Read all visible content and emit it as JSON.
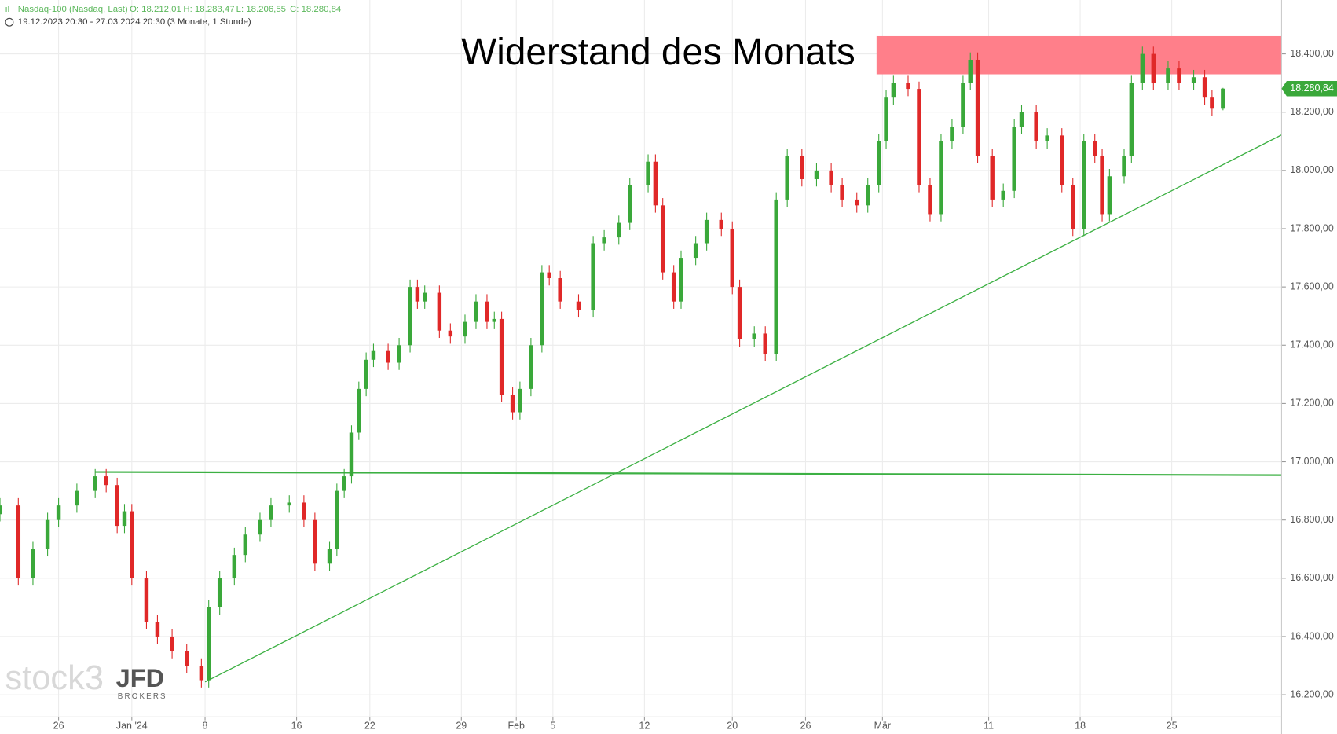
{
  "chart_data": {
    "type": "candlestick",
    "header": {
      "instrument": "Nasdaq-100 (Nasdaq, Last)",
      "open": "O: 18.212,01",
      "high": "H: 18.283,47",
      "low": "L: 18.206,55",
      "close": "C: 18.280,84",
      "range": "19.12.2023 20:30 - 27.03.2024 20:30",
      "period": "(3 Monate, 1 Stunde)"
    },
    "annotation": "Widerstand des Monats",
    "resistance_zone": [
      18330,
      18461
    ],
    "resistance_color": "#ff7f8a",
    "horizontal_line": {
      "x": [
        26,
        350
      ],
      "y": [
        16965,
        16954
      ]
    },
    "trend_line": {
      "x": [
        56,
        350
      ],
      "y": [
        16244,
        18122
      ]
    },
    "line_color": "#3cb043",
    "last_price_label": "18.280,84",
    "watermark": "stock3",
    "broker": "JFD",
    "broker_sub": "BROKERS",
    "up_color": "#3aa83a",
    "down_color": "#e02828",
    "x": [
      0,
      5,
      9,
      13,
      16,
      21,
      26,
      29,
      32,
      34,
      36,
      40,
      43,
      47,
      51,
      55,
      57,
      60,
      64,
      67,
      71,
      74,
      79,
      83,
      86,
      90,
      92,
      94,
      96,
      98,
      100,
      102,
      106,
      109,
      112,
      114,
      116,
      120,
      123,
      127,
      130,
      133,
      135,
      137,
      140,
      142,
      145,
      148,
      150,
      153,
      158,
      162,
      165,
      169,
      172,
      177,
      179,
      181,
      184,
      186,
      190,
      193,
      197,
      200,
      202,
      206,
      209,
      212,
      215,
      219,
      223,
      227,
      230,
      234,
      237,
      240,
      242,
      244,
      248,
      251,
      254,
      257,
      260,
      263,
      265,
      267,
      271,
      274,
      277,
      279,
      283,
      286,
      290,
      293,
      296,
      299,
      301,
      303,
      307,
      309,
      312,
      315,
      319,
      322,
      326,
      329,
      331,
      334
    ],
    "open": [
      16820,
      16850,
      16600,
      16700,
      16800,
      16850,
      16900,
      16950,
      16920,
      16780,
      16830,
      16600,
      16450,
      16400,
      16350,
      16300,
      16250,
      16500,
      16600,
      16680,
      16750,
      16800,
      16850,
      16860,
      16800,
      16650,
      16700,
      16900,
      16950,
      17100,
      17250,
      17350,
      17380,
      17340,
      17400,
      17600,
      17550,
      17580,
      17450,
      17430,
      17480,
      17550,
      17480,
      17490,
      17230,
      17170,
      17250,
      17400,
      17650,
      17630,
      17550,
      17520,
      17750,
      17770,
      17820,
      17950,
      18030,
      17880,
      17650,
      17550,
      17700,
      17750,
      17830,
      17800,
      17600,
      17420,
      17440,
      17370,
      17900,
      18050,
      17970,
      18000,
      17950,
      17900,
      17880,
      17950,
      18100,
      18250,
      18300,
      18280,
      17950,
      17850,
      18100,
      18150,
      18300,
      18380,
      18050,
      17900,
      17930,
      18150,
      18200,
      18100,
      18120,
      17950,
      17800,
      18100,
      18050,
      17850,
      17980,
      18050,
      18300,
      18400,
      18300,
      18350,
      18300,
      18320,
      18250,
      18212.01
    ],
    "high": [
      16875,
      16875,
      16725,
      16825,
      16875,
      16925,
      16975,
      16975,
      16945,
      16855,
      16855,
      16625,
      16475,
      16425,
      16375,
      16325,
      16525,
      16625,
      16705,
      16775,
      16825,
      16875,
      16885,
      16885,
      16825,
      16725,
      16925,
      16975,
      17125,
      17275,
      17375,
      17405,
      17405,
      17425,
      17625,
      17625,
      17605,
      17605,
      17475,
      17505,
      17575,
      17575,
      17515,
      17515,
      17255,
      17275,
      17425,
      17675,
      17675,
      17655,
      17575,
      17775,
      17795,
      17845,
      17975,
      18055,
      18055,
      17905,
      17675,
      17725,
      17775,
      17855,
      17855,
      17825,
      17625,
      17465,
      17465,
      17925,
      18075,
      18075,
      18025,
      18025,
      17975,
      17925,
      17975,
      18125,
      18275,
      18325,
      18325,
      18305,
      17975,
      18125,
      18175,
      18325,
      18405,
      18405,
      18075,
      17955,
      18175,
      18225,
      18225,
      18145,
      18145,
      17975,
      18125,
      18125,
      18075,
      18005,
      18075,
      18325,
      18425,
      18425,
      18375,
      18375,
      18345,
      18345,
      18275,
      18283.47
    ],
    "low": [
      16795,
      16575,
      16575,
      16675,
      16775,
      16825,
      16875,
      16895,
      16755,
      16755,
      16575,
      16425,
      16375,
      16325,
      16275,
      16225,
      16225,
      16475,
      16575,
      16655,
      16725,
      16775,
      16825,
      16775,
      16625,
      16625,
      16675,
      16875,
      16925,
      17075,
      17225,
      17325,
      17315,
      17315,
      17375,
      17525,
      17525,
      17425,
      17405,
      17405,
      17455,
      17455,
      17455,
      17205,
      17145,
      17145,
      17225,
      17375,
      17605,
      17525,
      17495,
      17495,
      17725,
      17745,
      17795,
      17925,
      17855,
      17625,
      17525,
      17525,
      17675,
      17725,
      17775,
      17575,
      17395,
      17395,
      17345,
      17345,
      17875,
      17945,
      17945,
      17925,
      17875,
      17855,
      17855,
      17925,
      18075,
      18225,
      18255,
      17925,
      17825,
      17825,
      18075,
      18125,
      18275,
      18025,
      17875,
      17875,
      17905,
      18125,
      18075,
      18075,
      17925,
      17775,
      17775,
      18025,
      17825,
      17825,
      17955,
      18025,
      18275,
      18275,
      18275,
      18275,
      18275,
      18225,
      18187.01,
      18206.55
    ],
    "close": [
      16850,
      16600,
      16700,
      16800,
      16850,
      16900,
      16950,
      16920,
      16780,
      16830,
      16600,
      16450,
      16400,
      16350,
      16300,
      16250,
      16500,
      16600,
      16680,
      16750,
      16800,
      16850,
      16860,
      16800,
      16650,
      16700,
      16900,
      16950,
      17100,
      17250,
      17350,
      17380,
      17340,
      17400,
      17600,
      17550,
      17580,
      17450,
      17430,
      17480,
      17550,
      17480,
      17490,
      17230,
      17170,
      17250,
      17400,
      17650,
      17630,
      17550,
      17520,
      17750,
      17770,
      17820,
      17950,
      18030,
      17880,
      17650,
      17550,
      17700,
      17750,
      17830,
      17800,
      17600,
      17420,
      17440,
      17370,
      17900,
      18050,
      17970,
      18000,
      17950,
      17900,
      17880,
      17950,
      18100,
      18250,
      18300,
      18280,
      17950,
      17850,
      18100,
      18150,
      18300,
      18380,
      18050,
      17900,
      17930,
      18150,
      18200,
      18100,
      18120,
      17950,
      17800,
      18100,
      18050,
      17850,
      17980,
      18050,
      18300,
      18400,
      18300,
      18350,
      18300,
      18320,
      18250,
      18212.01,
      18280.84
    ],
    "xlim": [
      0,
      350
    ],
    "xticks": [
      {
        "value": 16,
        "label": "26"
      },
      {
        "value": 36,
        "label": "Jan '24"
      },
      {
        "value": 56,
        "label": "8"
      },
      {
        "value": 81,
        "label": "16"
      },
      {
        "value": 101,
        "label": "22"
      },
      {
        "value": 126,
        "label": "29"
      },
      {
        "value": 141,
        "label": "Feb"
      },
      {
        "value": 151,
        "label": "5"
      },
      {
        "value": 176,
        "label": "12"
      },
      {
        "value": 200,
        "label": "20"
      },
      {
        "value": 220,
        "label": "26"
      },
      {
        "value": 241,
        "label": "Mär"
      },
      {
        "value": 270,
        "label": "11"
      },
      {
        "value": 295,
        "label": "18"
      },
      {
        "value": 320,
        "label": "25"
      }
    ],
    "ylim": [
      16124,
      18585
    ],
    "yticks": [
      {
        "value": 16200,
        "label": "16.200,00"
      },
      {
        "value": 16400,
        "label": "16.400,00"
      },
      {
        "value": 16600,
        "label": "16.600,00"
      },
      {
        "value": 16800,
        "label": "16.800,00"
      },
      {
        "value": 17000,
        "label": "17.000,00"
      },
      {
        "value": 17200,
        "label": "17.200,00"
      },
      {
        "value": 17400,
        "label": "17.400,00"
      },
      {
        "value": 17600,
        "label": "17.600,00"
      },
      {
        "value": 17800,
        "label": "17.800,00"
      },
      {
        "value": 18000,
        "label": "18.000,00"
      },
      {
        "value": 18200,
        "label": "18.200,00"
      },
      {
        "value": 18400,
        "label": "18.400,00"
      }
    ],
    "grid": true
  }
}
